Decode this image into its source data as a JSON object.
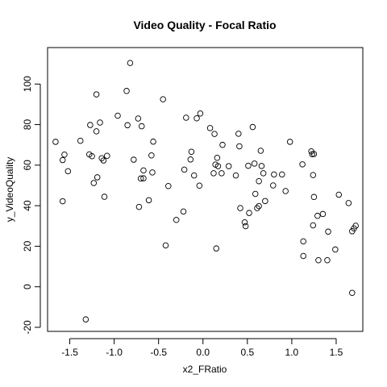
{
  "chart_data": {
    "type": "scatter",
    "title": "Video Quality - Focal Ratio",
    "xlabel": "x2_FRatio",
    "ylabel": "y_VideoQuality",
    "xlim": [
      -1.75,
      1.8
    ],
    "ylim": [
      -22,
      118
    ],
    "x_ticks": [
      -1.5,
      -1.0,
      -0.5,
      0.0,
      0.5,
      1.0,
      1.5
    ],
    "x_tick_labels": [
      "-1.5",
      "-1.0",
      "-0.5",
      "0.0",
      "0.5",
      "1.0",
      "1.5"
    ],
    "y_ticks": [
      -20,
      0,
      20,
      40,
      60,
      80,
      100
    ],
    "y_tick_labels": [
      "-20",
      "0",
      "20",
      "40",
      "60",
      "80",
      "100"
    ],
    "grid": false,
    "marker": "open-circle",
    "marker_color": "#000000",
    "points": [
      [
        -1.66,
        71.5
      ],
      [
        -1.58,
        62.5
      ],
      [
        -1.56,
        65.2
      ],
      [
        -1.58,
        42.2
      ],
      [
        -1.52,
        57.0
      ],
      [
        -1.38,
        72.0
      ],
      [
        -1.32,
        -16.1
      ],
      [
        -1.27,
        79.8
      ],
      [
        -1.28,
        65.3
      ],
      [
        -1.25,
        64.4
      ],
      [
        -1.23,
        51.2
      ],
      [
        -1.2,
        94.9
      ],
      [
        -1.2,
        76.7
      ],
      [
        -1.19,
        54.0
      ],
      [
        -1.16,
        81.0
      ],
      [
        -1.14,
        63.4
      ],
      [
        -1.12,
        62.3
      ],
      [
        -1.11,
        44.4
      ],
      [
        -1.08,
        64.6
      ],
      [
        -0.96,
        84.4
      ],
      [
        -0.86,
        96.6
      ],
      [
        -0.85,
        79.7
      ],
      [
        -0.82,
        110.4
      ],
      [
        -0.78,
        62.7
      ],
      [
        -0.73,
        83.0
      ],
      [
        -0.72,
        39.4
      ],
      [
        -0.69,
        79.2
      ],
      [
        -0.7,
        53.4
      ],
      [
        -0.67,
        53.5
      ],
      [
        -0.67,
        57.4
      ],
      [
        -0.61,
        42.7
      ],
      [
        -0.58,
        64.8
      ],
      [
        -0.57,
        56.4
      ],
      [
        -0.56,
        71.6
      ],
      [
        -0.45,
        92.5
      ],
      [
        -0.42,
        20.4
      ],
      [
        -0.39,
        49.7
      ],
      [
        -0.3,
        33.0
      ],
      [
        -0.22,
        37.1
      ],
      [
        -0.21,
        57.8
      ],
      [
        -0.19,
        83.4
      ],
      [
        -0.14,
        62.8
      ],
      [
        -0.13,
        66.6
      ],
      [
        -0.1,
        54.9
      ],
      [
        -0.07,
        83.1
      ],
      [
        -0.03,
        85.5
      ],
      [
        -0.04,
        49.9
      ],
      [
        0.08,
        78.3
      ],
      [
        0.12,
        56.0
      ],
      [
        0.13,
        75.4
      ],
      [
        0.14,
        60.3
      ],
      [
        0.16,
        63.6
      ],
      [
        0.15,
        18.9
      ],
      [
        0.17,
        59.5
      ],
      [
        0.21,
        56.0
      ],
      [
        0.22,
        70.0
      ],
      [
        0.29,
        59.5
      ],
      [
        0.37,
        54.9
      ],
      [
        0.4,
        75.5
      ],
      [
        0.41,
        69.3
      ],
      [
        0.42,
        38.8
      ],
      [
        0.47,
        31.8
      ],
      [
        0.48,
        29.9
      ],
      [
        0.51,
        59.7
      ],
      [
        0.52,
        36.4
      ],
      [
        0.56,
        78.8
      ],
      [
        0.58,
        60.8
      ],
      [
        0.59,
        45.8
      ],
      [
        0.61,
        38.8
      ],
      [
        0.63,
        39.8
      ],
      [
        0.63,
        52.1
      ],
      [
        0.65,
        67.1
      ],
      [
        0.66,
        59.6
      ],
      [
        0.68,
        56.0
      ],
      [
        0.7,
        42.3
      ],
      [
        0.79,
        50.0
      ],
      [
        0.8,
        55.4
      ],
      [
        0.89,
        55.4
      ],
      [
        0.93,
        47.2
      ],
      [
        0.98,
        71.5
      ],
      [
        1.12,
        60.4
      ],
      [
        1.13,
        22.4
      ],
      [
        1.13,
        15.2
      ],
      [
        1.22,
        66.8
      ],
      [
        1.23,
        65.4
      ],
      [
        1.24,
        55.1
      ],
      [
        1.25,
        65.5
      ],
      [
        1.24,
        30.3
      ],
      [
        1.25,
        44.3
      ],
      [
        1.29,
        35.0
      ],
      [
        1.3,
        13.1
      ],
      [
        1.35,
        35.9
      ],
      [
        1.4,
        13.1
      ],
      [
        1.41,
        27.2
      ],
      [
        1.49,
        18.4
      ],
      [
        1.53,
        45.4
      ],
      [
        1.64,
        41.3
      ],
      [
        1.68,
        -3.0
      ],
      [
        1.68,
        27.4
      ],
      [
        1.7,
        28.8
      ],
      [
        1.72,
        30.1
      ]
    ]
  }
}
